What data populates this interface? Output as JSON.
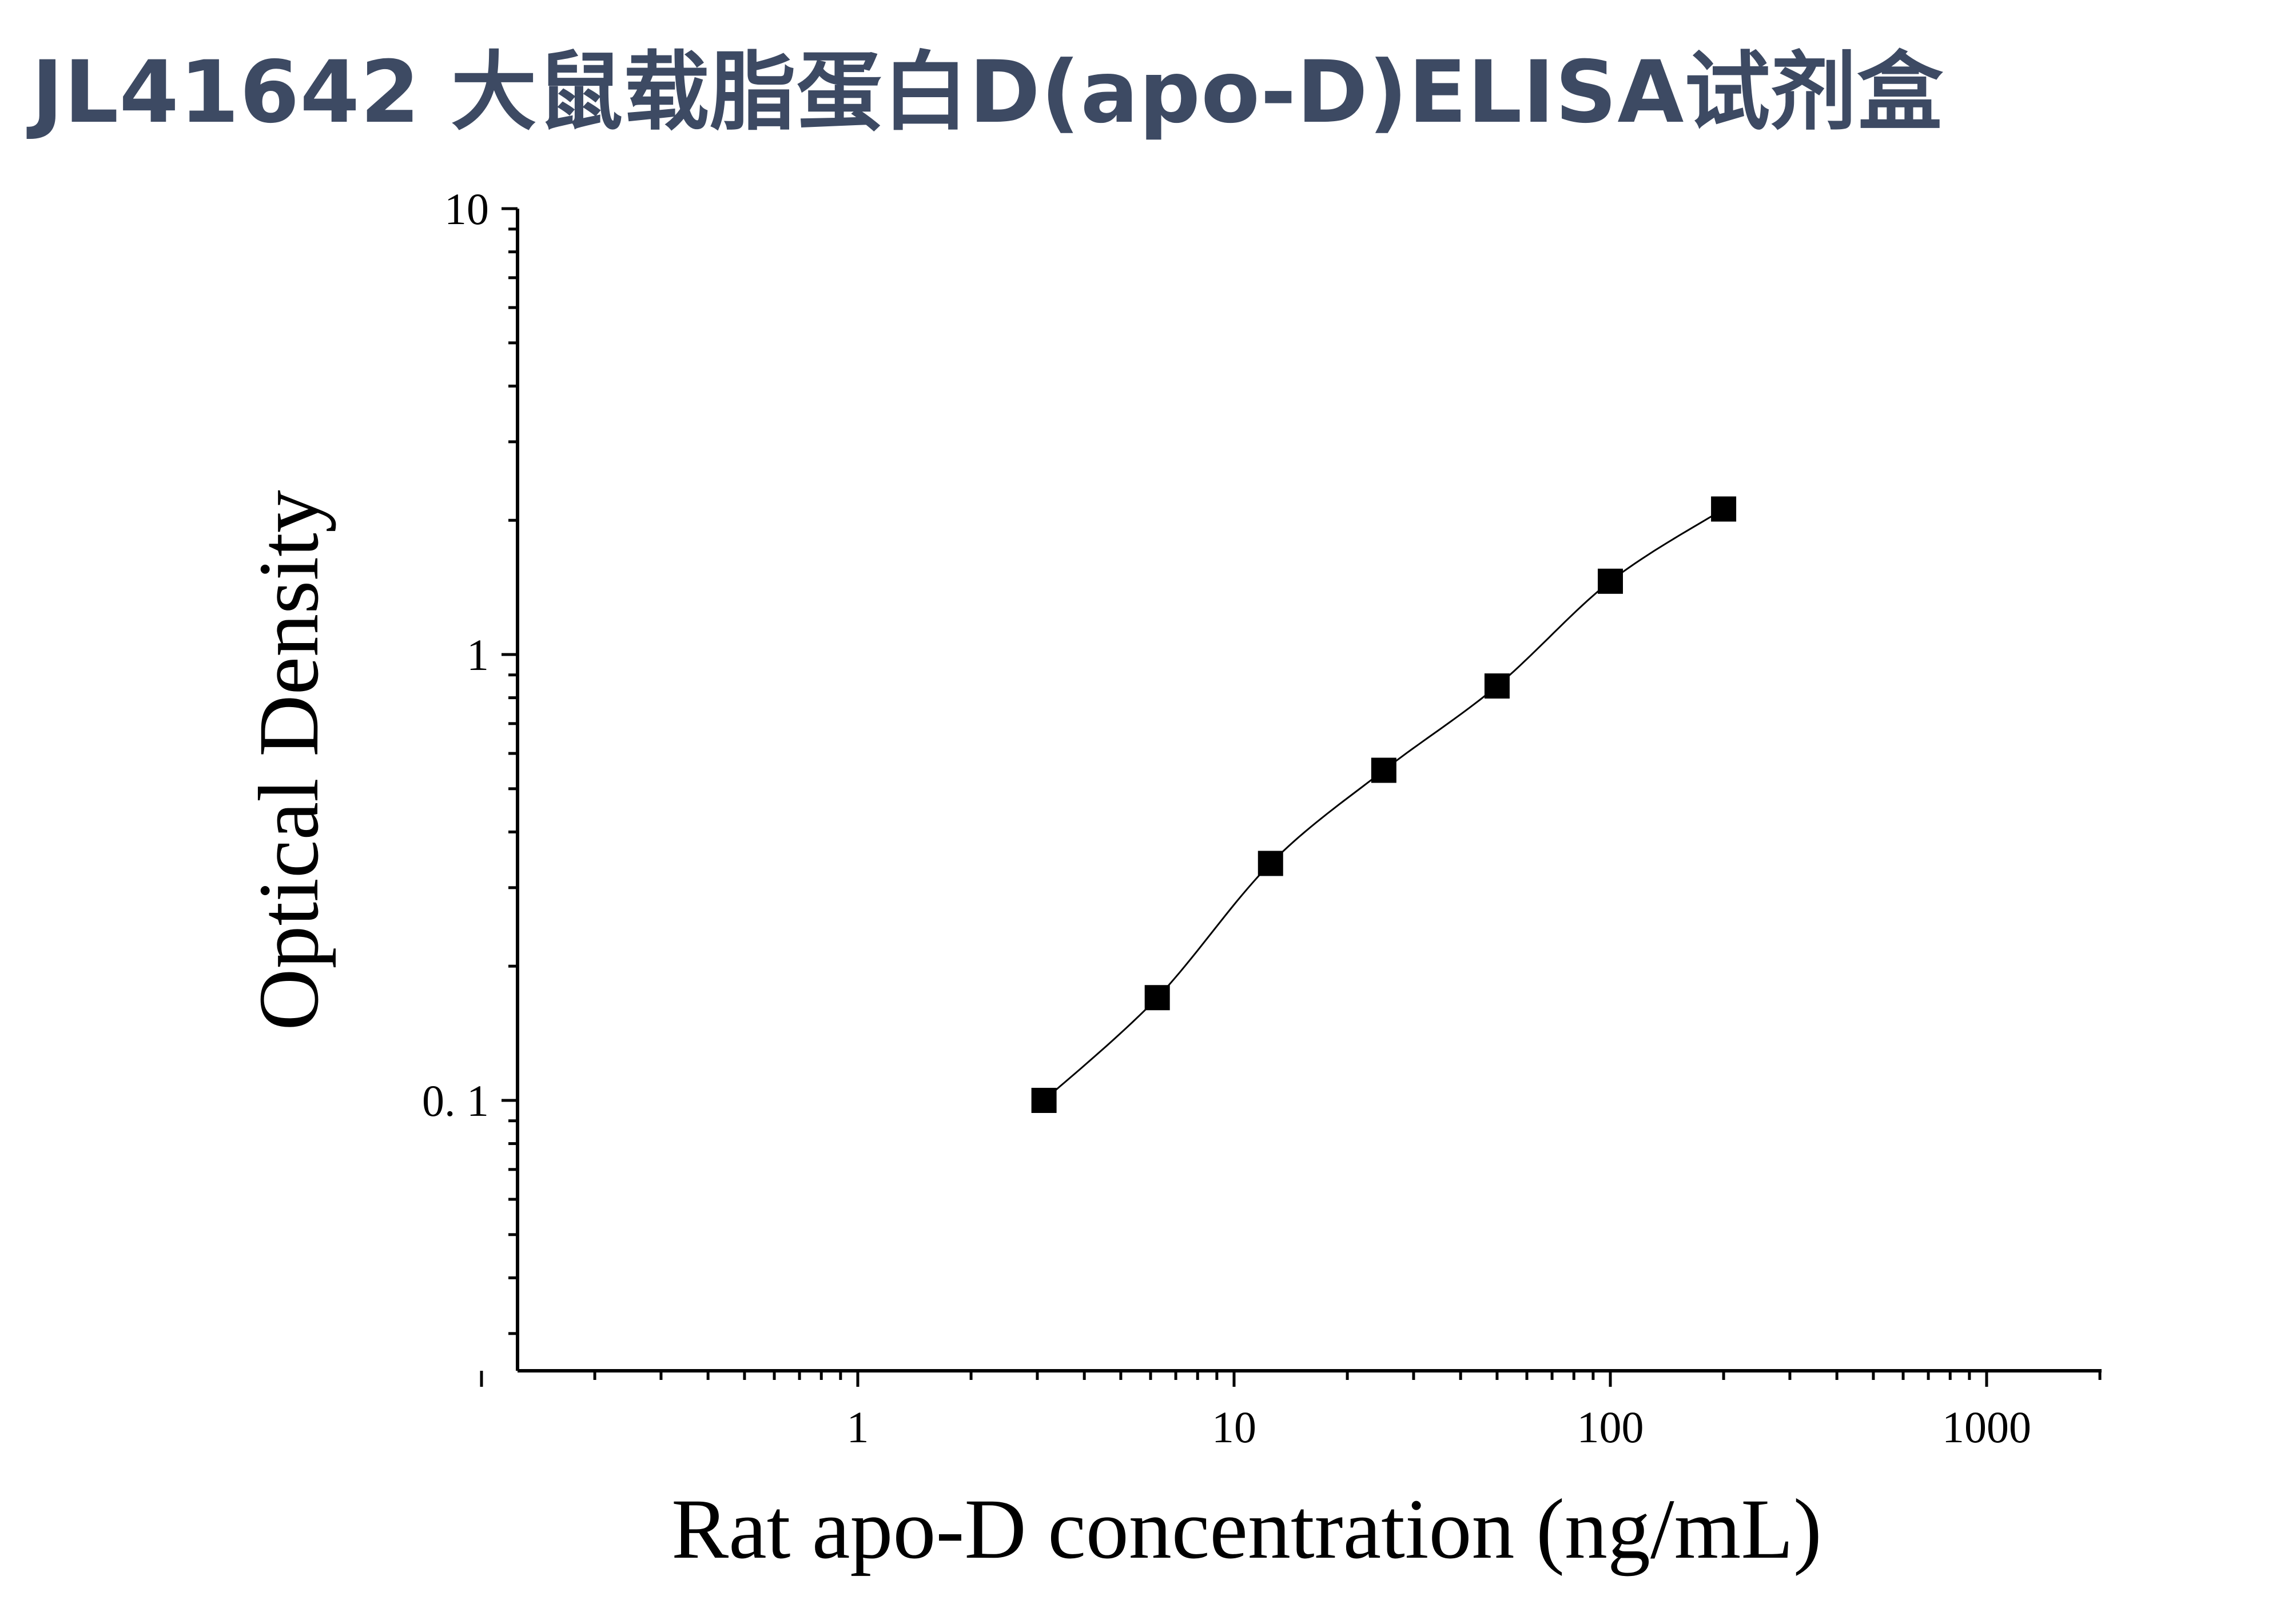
{
  "title": "JL41642 大鼠载脂蛋白D(apo-D)ELISA试剂盒",
  "chart_data": {
    "type": "scatter",
    "xlabel": "Rat apo-D concentration (ng/mL)",
    "ylabel": "Optical Density",
    "x_scale": "log",
    "y_scale": "log",
    "xlim": [
      0.1,
      2000
    ],
    "ylim": [
      0.025,
      10
    ],
    "x_tick_labels": [
      "1",
      "10",
      "100",
      "1000"
    ],
    "y_tick_labels": [
      "0. 1",
      "1",
      "10"
    ],
    "grid": false,
    "legend": "none",
    "marker": "square",
    "marker_color": "#000000",
    "line_color": "#000000",
    "points": [
      {
        "x": 3.125,
        "y": 0.1
      },
      {
        "x": 6.25,
        "y": 0.17
      },
      {
        "x": 12.5,
        "y": 0.34
      },
      {
        "x": 25,
        "y": 0.55
      },
      {
        "x": 50,
        "y": 0.85
      },
      {
        "x": 100,
        "y": 1.46
      },
      {
        "x": 200,
        "y": 2.12
      }
    ]
  }
}
